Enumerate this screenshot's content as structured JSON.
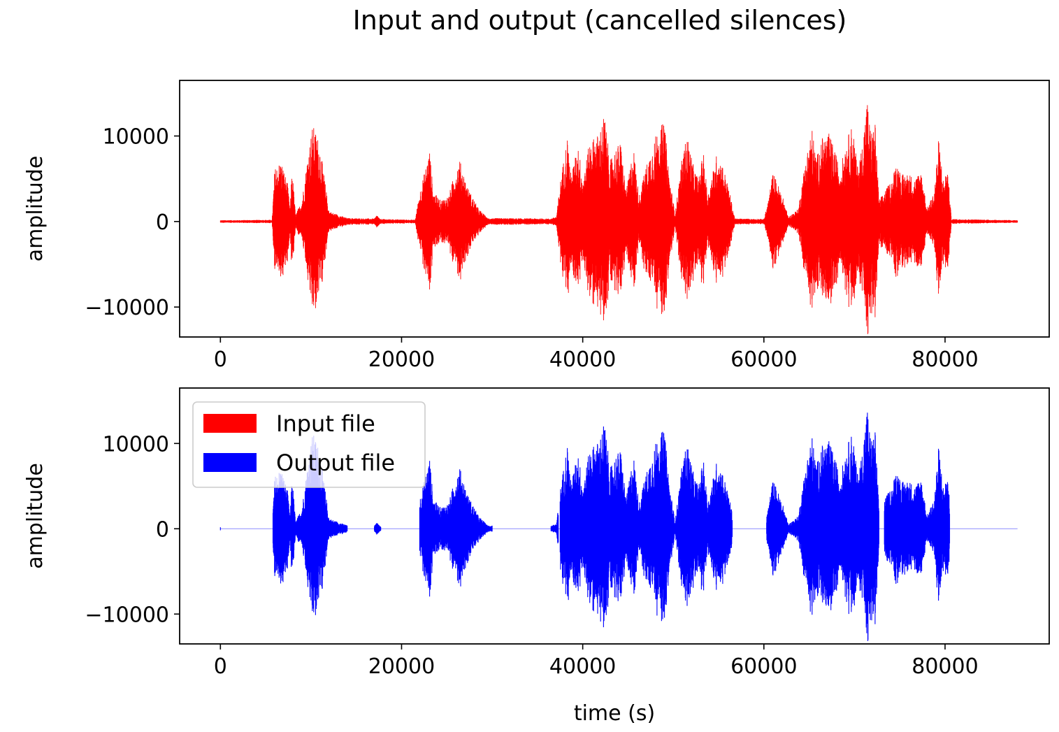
{
  "chart_data": [
    {
      "type": "line",
      "title": "Input and output (cancelled silences)",
      "xlabel": "",
      "ylabel": "amplitude",
      "xlim": [
        -4500,
        91500
      ],
      "ylim": [
        -13500,
        16500
      ],
      "xticks": [
        0,
        20000,
        40000,
        60000,
        80000
      ],
      "yticks": [
        -10000,
        0,
        10000
      ],
      "xtick_labels": [
        "0",
        "20000",
        "40000",
        "60000",
        "80000"
      ],
      "ytick_labels": [
        "−10000",
        "0",
        "10000"
      ],
      "grid": false,
      "series": [
        {
          "color": "#ff0000",
          "envelope": [
            {
              "x": 0,
              "y": 150
            },
            {
              "x": 5700,
              "y": 200
            },
            {
              "x": 6000,
              "y": 6200
            },
            {
              "x": 6700,
              "y": 7200
            },
            {
              "x": 7400,
              "y": 4500
            },
            {
              "x": 7700,
              "y": 1500
            },
            {
              "x": 7900,
              "y": 6400
            },
            {
              "x": 8300,
              "y": 800
            },
            {
              "x": 9000,
              "y": 2500
            },
            {
              "x": 9800,
              "y": 9000
            },
            {
              "x": 10200,
              "y": 11300
            },
            {
              "x": 10900,
              "y": 9500
            },
            {
              "x": 11500,
              "y": 5000
            },
            {
              "x": 12000,
              "y": 1200
            },
            {
              "x": 14000,
              "y": 400
            },
            {
              "x": 17000,
              "y": 350
            },
            {
              "x": 17300,
              "y": 800
            },
            {
              "x": 17600,
              "y": 300
            },
            {
              "x": 21500,
              "y": 200
            },
            {
              "x": 22000,
              "y": 3500
            },
            {
              "x": 22700,
              "y": 6500
            },
            {
              "x": 23100,
              "y": 8400
            },
            {
              "x": 23500,
              "y": 3500
            },
            {
              "x": 24300,
              "y": 2500
            },
            {
              "x": 25200,
              "y": 3000
            },
            {
              "x": 25800,
              "y": 5500
            },
            {
              "x": 26400,
              "y": 7300
            },
            {
              "x": 27300,
              "y": 4000
            },
            {
              "x": 28500,
              "y": 1500
            },
            {
              "x": 29500,
              "y": 400
            },
            {
              "x": 36500,
              "y": 350
            },
            {
              "x": 37100,
              "y": 600
            },
            {
              "x": 37500,
              "y": 4500
            },
            {
              "x": 38300,
              "y": 10000
            },
            {
              "x": 38700,
              "y": 5500
            },
            {
              "x": 39500,
              "y": 9000
            },
            {
              "x": 40000,
              "y": 5000
            },
            {
              "x": 40800,
              "y": 9500
            },
            {
              "x": 41800,
              "y": 10300
            },
            {
              "x": 42400,
              "y": 12700
            },
            {
              "x": 43000,
              "y": 7000
            },
            {
              "x": 43700,
              "y": 8800
            },
            {
              "x": 44200,
              "y": 9200
            },
            {
              "x": 44800,
              "y": 3500
            },
            {
              "x": 45600,
              "y": 8800
            },
            {
              "x": 46200,
              "y": 3000
            },
            {
              "x": 47000,
              "y": 6500
            },
            {
              "x": 48200,
              "y": 10600
            },
            {
              "x": 49000,
              "y": 11700
            },
            {
              "x": 49600,
              "y": 5000
            },
            {
              "x": 50200,
              "y": 900
            },
            {
              "x": 50900,
              "y": 7000
            },
            {
              "x": 51500,
              "y": 10200
            },
            {
              "x": 52300,
              "y": 6200
            },
            {
              "x": 52800,
              "y": 5000
            },
            {
              "x": 53300,
              "y": 8300
            },
            {
              "x": 53800,
              "y": 3000
            },
            {
              "x": 54800,
              "y": 8000
            },
            {
              "x": 55500,
              "y": 6500
            },
            {
              "x": 56200,
              "y": 3500
            },
            {
              "x": 56800,
              "y": 350
            },
            {
              "x": 60000,
              "y": 300
            },
            {
              "x": 60400,
              "y": 2000
            },
            {
              "x": 61000,
              "y": 5800
            },
            {
              "x": 61500,
              "y": 4500
            },
            {
              "x": 62200,
              "y": 2500
            },
            {
              "x": 62700,
              "y": 500
            },
            {
              "x": 63800,
              "y": 1500
            },
            {
              "x": 64600,
              "y": 7300
            },
            {
              "x": 65300,
              "y": 11000
            },
            {
              "x": 65800,
              "y": 7500
            },
            {
              "x": 66500,
              "y": 10000
            },
            {
              "x": 67200,
              "y": 10300
            },
            {
              "x": 67800,
              "y": 8500
            },
            {
              "x": 68400,
              "y": 6000
            },
            {
              "x": 69100,
              "y": 9500
            },
            {
              "x": 69800,
              "y": 11500
            },
            {
              "x": 70300,
              "y": 6500
            },
            {
              "x": 70800,
              "y": 8500
            },
            {
              "x": 71400,
              "y": 14500
            },
            {
              "x": 71800,
              "y": 10500
            },
            {
              "x": 72300,
              "y": 11500
            },
            {
              "x": 72700,
              "y": 2500
            },
            {
              "x": 73300,
              "y": 3500
            },
            {
              "x": 74200,
              "y": 5000
            },
            {
              "x": 74600,
              "y": 7200
            },
            {
              "x": 75200,
              "y": 5500
            },
            {
              "x": 76000,
              "y": 5700
            },
            {
              "x": 76600,
              "y": 5000
            },
            {
              "x": 77400,
              "y": 6000
            },
            {
              "x": 78000,
              "y": 1500
            },
            {
              "x": 78800,
              "y": 3500
            },
            {
              "x": 79300,
              "y": 9800
            },
            {
              "x": 79800,
              "y": 5000
            },
            {
              "x": 80300,
              "y": 6200
            },
            {
              "x": 80700,
              "y": 300
            },
            {
              "x": 88000,
              "y": 150
            }
          ]
        }
      ]
    },
    {
      "type": "line",
      "title": "",
      "xlabel": "time (s)",
      "ylabel": "amplitude",
      "xlim": [
        -4500,
        91500
      ],
      "ylim": [
        -13500,
        16500
      ],
      "xticks": [
        0,
        20000,
        40000,
        60000,
        80000
      ],
      "yticks": [
        -10000,
        0,
        10000
      ],
      "xtick_labels": [
        "0",
        "20000",
        "40000",
        "60000",
        "80000"
      ],
      "ytick_labels": [
        "−10000",
        "0",
        "10000"
      ],
      "grid": false,
      "legend": {
        "placement": "upper-left",
        "entries": [
          {
            "label": "Input file",
            "color": "#ff0000"
          },
          {
            "label": "Output file",
            "color": "#0000ff"
          }
        ]
      },
      "series": [
        {
          "color": "#0000ff",
          "segments": [
            [
              5800,
              14000
            ],
            [
              17000,
              17700
            ],
            [
              22000,
              30000
            ],
            [
              36500,
              37300
            ],
            [
              37500,
              56500
            ],
            [
              60300,
              72700
            ],
            [
              73300,
              80500
            ]
          ],
          "baseline_color": "#9999ff"
        }
      ]
    }
  ]
}
